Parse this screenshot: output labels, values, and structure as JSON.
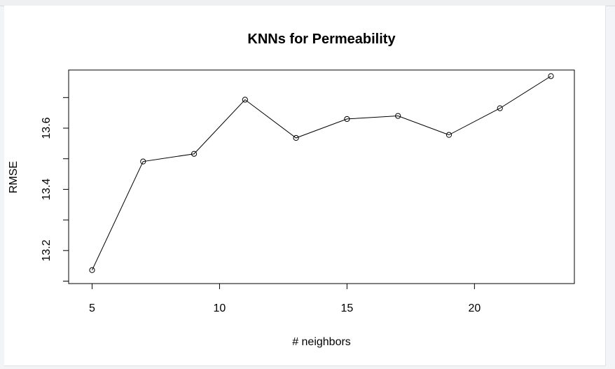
{
  "chart_data": {
    "type": "line",
    "title": "KNNs for Permeability",
    "xlabel": "# neighbors",
    "ylabel": "RMSE",
    "x": [
      5,
      7,
      9,
      11,
      13,
      15,
      17,
      19,
      21,
      23
    ],
    "series": [
      {
        "values": [
          13.136,
          13.491,
          13.516,
          13.693,
          13.568,
          13.63,
          13.64,
          13.578,
          13.665,
          13.77
        ]
      }
    ],
    "xlim": [
      4.08,
      23.92
    ],
    "ylim": [
      13.092,
      13.79
    ],
    "xticks": [
      5,
      10,
      15,
      20
    ],
    "yticks": [
      13.1,
      13.2,
      13.3,
      13.4,
      13.5,
      13.6,
      13.7
    ],
    "ytick_labels": [
      "13.2",
      "13.4",
      "13.6"
    ],
    "grid": false,
    "colors": {
      "line": "#000000",
      "background": "#ffffff"
    }
  }
}
